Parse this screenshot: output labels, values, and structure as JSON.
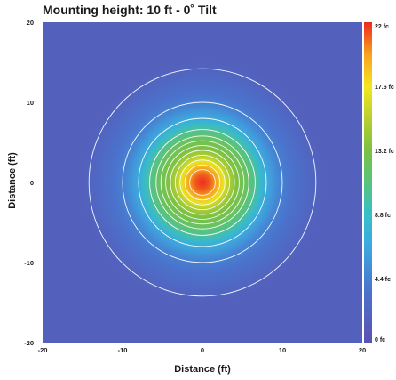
{
  "chart_data": {
    "type": "heatmap",
    "title": "Mounting height: 10 ft - 0˚ Tilt",
    "xlabel": "Distance (ft)",
    "ylabel": "Distance (ft)",
    "xlim": [
      -20,
      20
    ],
    "ylim": [
      -20,
      20
    ],
    "x_ticks": [
      -20,
      -10,
      0,
      10,
      20
    ],
    "y_ticks": [
      20,
      10,
      0,
      -10,
      -20
    ],
    "x_tick_labels": [
      "-20",
      "-10",
      "0",
      "10",
      "20"
    ],
    "y_tick_labels": [
      "20",
      "10",
      "0",
      "-10",
      "-20"
    ],
    "colorbar": {
      "min": 0,
      "max": 22,
      "tick_values": [
        22,
        17.6,
        13.2,
        8.8,
        4.4,
        0
      ],
      "tick_labels": [
        "22 fc",
        "17.6 fc",
        "13.2 fc",
        "8.8 fc",
        "4.4 fc",
        "0 fc"
      ],
      "stops": [
        {
          "value": 0,
          "color": "#5b52b0"
        },
        {
          "value": 3.5,
          "color": "#4a72cc"
        },
        {
          "value": 6.6,
          "color": "#3da8e0"
        },
        {
          "value": 8.8,
          "color": "#35c0c8"
        },
        {
          "value": 11,
          "color": "#59c37c"
        },
        {
          "value": 13.2,
          "color": "#7bc143"
        },
        {
          "value": 15.4,
          "color": "#b7d030"
        },
        {
          "value": 17.6,
          "color": "#f4e61f"
        },
        {
          "value": 19.8,
          "color": "#f7a11e"
        },
        {
          "value": 22,
          "color": "#ec2a1e"
        }
      ]
    },
    "peak_illuminance_fc": 22,
    "contour_radii_ft": [
      1.6,
      2.2,
      2.8,
      3.4,
      4.0,
      4.6,
      5.2,
      5.8,
      6.6,
      8.0,
      10.0,
      14.2
    ],
    "contour_color": "#ffffff"
  }
}
